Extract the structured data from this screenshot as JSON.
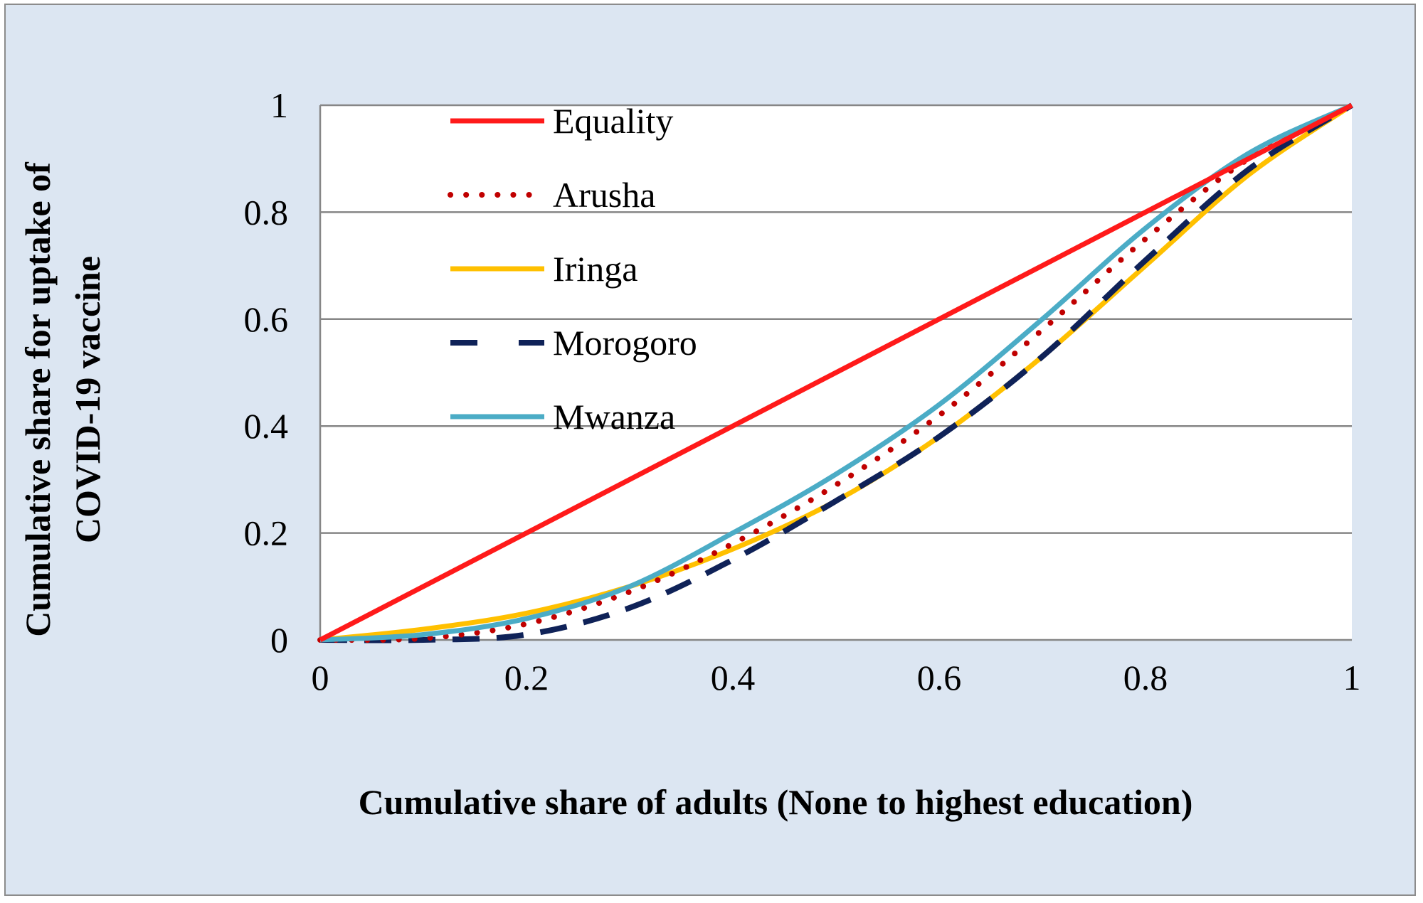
{
  "chart_data": {
    "type": "line",
    "xlabel": "Cumulative share of adults (None to highest education)",
    "ylabel_lines": [
      "Cumulative share for uptake of",
      "COVID-19 vaccine"
    ],
    "xlim": [
      0,
      1
    ],
    "ylim": [
      0,
      1
    ],
    "x_ticks": [
      "0",
      "0.2",
      "0.4",
      "0.6",
      "0.8",
      "1"
    ],
    "y_ticks": [
      "0",
      "0.2",
      "0.4",
      "0.6",
      "0.8",
      "1"
    ],
    "grid": "horizontal",
    "legend_position": "top-left (inside plot)",
    "series": [
      {
        "name": "Equality",
        "color": "#ff1a1a",
        "style": "solid",
        "x": [
          0,
          1
        ],
        "y": [
          0,
          1
        ]
      },
      {
        "name": "Arusha",
        "color": "#c00000",
        "style": "dotted",
        "x": [
          0,
          0.1,
          0.2,
          0.3,
          0.4,
          0.5,
          0.6,
          0.7,
          0.8,
          0.9,
          1
        ],
        "y": [
          0,
          0.003,
          0.03,
          0.09,
          0.18,
          0.29,
          0.42,
          0.58,
          0.75,
          0.9,
          1
        ]
      },
      {
        "name": "Iringa",
        "color": "#ffc000",
        "style": "solid",
        "x": [
          0,
          0.1,
          0.2,
          0.3,
          0.4,
          0.5,
          0.6,
          0.7,
          0.8,
          0.9,
          1
        ],
        "y": [
          0,
          0.02,
          0.05,
          0.1,
          0.17,
          0.26,
          0.38,
          0.53,
          0.7,
          0.87,
          1
        ]
      },
      {
        "name": "Morogoro",
        "color": "#0f2258",
        "style": "dashed",
        "x": [
          0,
          0.1,
          0.2,
          0.3,
          0.4,
          0.5,
          0.6,
          0.7,
          0.8,
          0.9,
          1
        ],
        "y": [
          0,
          0.0,
          0.01,
          0.06,
          0.15,
          0.26,
          0.38,
          0.53,
          0.71,
          0.88,
          1
        ]
      },
      {
        "name": "Mwanza",
        "color": "#4bacc6",
        "style": "solid",
        "x": [
          0,
          0.1,
          0.2,
          0.3,
          0.4,
          0.5,
          0.6,
          0.7,
          0.8,
          0.9,
          1
        ],
        "y": [
          0,
          0.01,
          0.04,
          0.1,
          0.2,
          0.31,
          0.44,
          0.6,
          0.77,
          0.91,
          1
        ]
      }
    ]
  }
}
